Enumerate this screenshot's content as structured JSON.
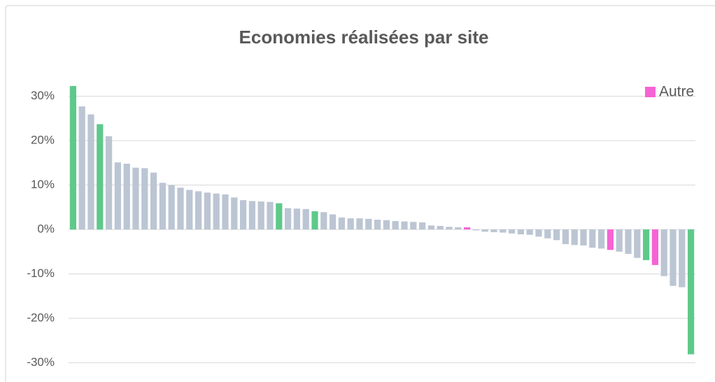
{
  "chart_data": {
    "type": "bar",
    "title": "Economies réalisées par site",
    "categories": [
      null,
      null,
      null,
      null,
      null,
      null,
      null,
      null,
      null,
      null,
      null,
      null,
      null,
      null,
      null,
      null,
      null,
      null,
      null,
      null,
      null,
      null,
      null,
      null,
      null,
      null,
      null,
      null,
      null,
      null,
      null,
      null,
      null,
      null,
      null,
      null,
      null,
      null,
      null,
      null,
      null,
      null,
      null,
      null,
      null,
      null,
      null,
      null,
      null,
      null,
      null,
      null,
      null,
      null,
      null,
      null,
      null,
      null,
      null,
      null,
      null,
      null,
      null,
      null,
      null,
      null,
      null,
      null,
      null,
      null
    ],
    "values": [
      32.3,
      27.7,
      25.9,
      23.7,
      21,
      15.1,
      14.8,
      13.9,
      13.8,
      12.8,
      10.5,
      10,
      9.4,
      8.9,
      8.6,
      8.3,
      8.1,
      7.9,
      7.2,
      6.6,
      6.4,
      6.3,
      6.2,
      5.9,
      4.8,
      4.7,
      4.6,
      4.1,
      3.9,
      3.4,
      2.7,
      2.5,
      2.5,
      2.4,
      2.2,
      2.1,
      1.9,
      1.8,
      1.7,
      1.6,
      0.9,
      0.8,
      0.6,
      0.5,
      0.5,
      -0.2,
      -0.5,
      -0.6,
      -0.7,
      -0.9,
      -1.1,
      -1.2,
      -1.6,
      -2,
      -2.4,
      -3.3,
      -3.5,
      -3.6,
      -4.1,
      -4.3,
      -4.6,
      -5,
      -5.5,
      -6.4,
      -6.9,
      -8,
      -10.5,
      -12.7,
      -13,
      -28.1
    ],
    "colors": [
      "#5ec98a",
      "#bcc5d3",
      "#bcc5d3",
      "#5ec98a",
      "#bcc5d3",
      "#bcc5d3",
      "#bcc5d3",
      "#bcc5d3",
      "#bcc5d3",
      "#bcc5d3",
      "#bcc5d3",
      "#bcc5d3",
      "#bcc5d3",
      "#bcc5d3",
      "#bcc5d3",
      "#bcc5d3",
      "#bcc5d3",
      "#bcc5d3",
      "#bcc5d3",
      "#bcc5d3",
      "#bcc5d3",
      "#bcc5d3",
      "#bcc5d3",
      "#5ec98a",
      "#bcc5d3",
      "#bcc5d3",
      "#bcc5d3",
      "#5ec98a",
      "#bcc5d3",
      "#bcc5d3",
      "#bcc5d3",
      "#bcc5d3",
      "#bcc5d3",
      "#bcc5d3",
      "#bcc5d3",
      "#bcc5d3",
      "#bcc5d3",
      "#bcc5d3",
      "#bcc5d3",
      "#bcc5d3",
      "#bcc5d3",
      "#bcc5d3",
      "#bcc5d3",
      "#bcc5d3",
      "#f564d4",
      "#bcc5d3",
      "#bcc5d3",
      "#bcc5d3",
      "#bcc5d3",
      "#bcc5d3",
      "#bcc5d3",
      "#bcc5d3",
      "#bcc5d3",
      "#bcc5d3",
      "#bcc5d3",
      "#bcc5d3",
      "#bcc5d3",
      "#bcc5d3",
      "#bcc5d3",
      "#bcc5d3",
      "#f564d4",
      "#bcc5d3",
      "#bcc5d3",
      "#bcc5d3",
      "#5ec98a",
      "#f564d4",
      "#bcc5d3",
      "#bcc5d3",
      "#bcc5d3",
      "#5ec98a"
    ],
    "legend": [
      {
        "name": "Autre",
        "color": "#f564d4"
      }
    ],
    "ylim": [
      -34,
      33
    ],
    "yticks": [
      {
        "value": -30,
        "label": "-30%"
      },
      {
        "value": -20,
        "label": "-20%"
      },
      {
        "value": -10,
        "label": "-10%"
      },
      {
        "value": 0,
        "label": "0%"
      },
      {
        "value": 10,
        "label": "10%"
      },
      {
        "value": 20,
        "label": "20%"
      },
      {
        "value": 30,
        "label": "30%"
      }
    ],
    "grid": true
  }
}
